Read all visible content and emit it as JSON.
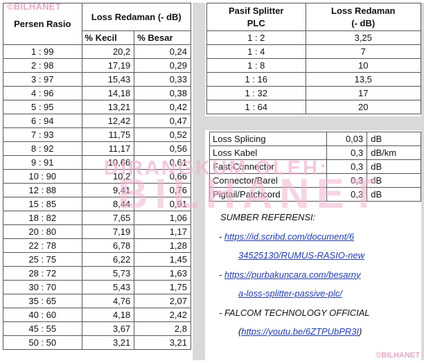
{
  "watermark": {
    "top_left": "©BILHANET",
    "bottom_right": "©BILHANET",
    "center_small": "DIRANGKUM OLEH:",
    "center_big": "BILHANET"
  },
  "ratio_table": {
    "col1_header": "Persen Rasio",
    "loss_header": "Loss Redaman (- dB)",
    "small_header": "% Kecil",
    "big_header": "% Besar",
    "rows": [
      {
        "ratio": "1 : 99",
        "small": "20,2",
        "big": "0,24"
      },
      {
        "ratio": "2 : 98",
        "small": "17,19",
        "big": "0,29"
      },
      {
        "ratio": "3 : 97",
        "small": "15,43",
        "big": "0,33"
      },
      {
        "ratio": "4 : 96",
        "small": "14,18",
        "big": "0,38"
      },
      {
        "ratio": "5 : 95",
        "small": "13,21",
        "big": "0,42"
      },
      {
        "ratio": "6 : 94",
        "small": "12,42",
        "big": "0,47"
      },
      {
        "ratio": "7 : 93",
        "small": "11,75",
        "big": "0,52"
      },
      {
        "ratio": "8 : 92",
        "small": "11,17",
        "big": "0,56"
      },
      {
        "ratio": "9 : 91",
        "small": "10,66",
        "big": "0,61"
      },
      {
        "ratio": "10 : 90",
        "small": "10,2",
        "big": "0,66"
      },
      {
        "ratio": "12 : 88",
        "small": "9,41",
        "big": "0,76"
      },
      {
        "ratio": "15 : 85",
        "small": "8,44",
        "big": "0,91"
      },
      {
        "ratio": "18 : 82",
        "small": "7,65",
        "big": "1,06"
      },
      {
        "ratio": "20 : 80",
        "small": "7,19",
        "big": "1,17"
      },
      {
        "ratio": "22 : 78",
        "small": "6,78",
        "big": "1,28"
      },
      {
        "ratio": "25 : 75",
        "small": "6,22",
        "big": "1,45"
      },
      {
        "ratio": "28 : 72",
        "small": "5,73",
        "big": "1,63"
      },
      {
        "ratio": "30 : 70",
        "small": "5,43",
        "big": "1,75"
      },
      {
        "ratio": "35 : 65",
        "small": "4,76",
        "big": "2,07"
      },
      {
        "ratio": "40 : 60",
        "small": "4,18",
        "big": "2,42"
      },
      {
        "ratio": "45 : 55",
        "small": "3,67",
        "big": "2,8"
      },
      {
        "ratio": "50 : 50",
        "small": "3,21",
        "big": "3,21"
      }
    ]
  },
  "splitter_table": {
    "col1_header_line1": "Pasif Splitter",
    "col1_header_line2": "PLC",
    "col2_header_line1": "Loss Redaman",
    "col2_header_line2": "(- dB)",
    "rows": [
      {
        "ratio": "1 : 2",
        "loss": "3,25"
      },
      {
        "ratio": "1 : 4",
        "loss": "7"
      },
      {
        "ratio": "1 : 8",
        "loss": "10"
      },
      {
        "ratio": "1 : 16",
        "loss": "13,5"
      },
      {
        "ratio": "1 : 32",
        "loss": "17"
      },
      {
        "ratio": "1 : 64",
        "loss": "20"
      }
    ]
  },
  "other_loss_table": {
    "rows": [
      {
        "item": "Loss Splicing",
        "value": "0,03",
        "unit": "dB"
      },
      {
        "item": "Loss Kabel",
        "value": "0,3",
        "unit": "dB/km"
      },
      {
        "item": "Fast Connector",
        "value": "0,3",
        "unit": "dB"
      },
      {
        "item": "Connector/Barel",
        "value": "0,3",
        "unit": "dB"
      },
      {
        "item": "Pigtail/Patchcord",
        "value": "0,3",
        "unit": "dB"
      }
    ]
  },
  "references": {
    "title": "SUMBER REFERENSI:",
    "bullet": "- ",
    "ref1_line1": "https://id.scribd.com/document/6",
    "ref1_line2": "34525130/RUMUS-RASIO-new",
    "ref2_line1": "https://purbakuncara.com/besarny",
    "ref2_line2": "a-loss-splitter-passive-plc/",
    "ref3_text": "FALCOM TECHNOLOGY OFFICIAL",
    "ref3_open": "(",
    "ref3_link": "https://youtu.be/6ZTPUbPR3I",
    "ref3_close": ")"
  }
}
